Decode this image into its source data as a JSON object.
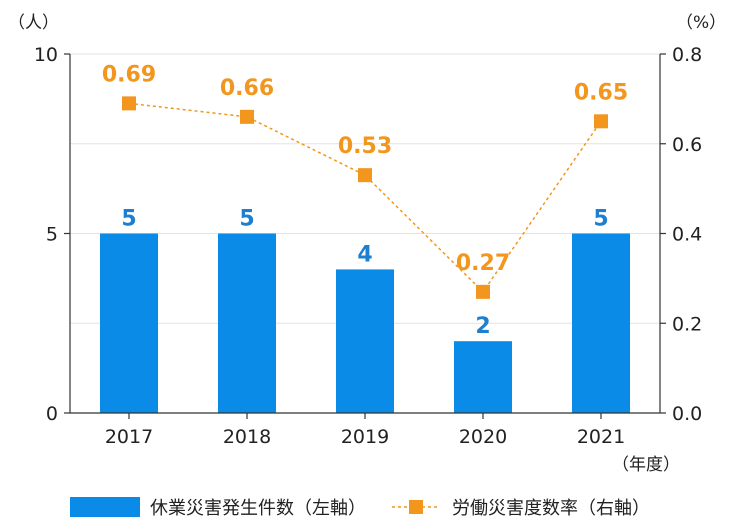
{
  "chart_data": {
    "type": "bar",
    "categories": [
      "2017",
      "2018",
      "2019",
      "2020",
      "2021"
    ],
    "series": [
      {
        "name": "休業災害発生件数（左軸）",
        "type": "bar",
        "axis": "left",
        "values": [
          5,
          5,
          4,
          2,
          5
        ],
        "color": "#0a8be8",
        "label_color": "#1e7fd0"
      },
      {
        "name": "労働災害度数率（右軸）",
        "type": "line",
        "axis": "right",
        "values": [
          0.69,
          0.66,
          0.53,
          0.27,
          0.65
        ],
        "labels": [
          "0.69",
          "0.66",
          "0.53",
          "0.27",
          "0.65"
        ],
        "color": "#f2961e",
        "line_style": "dashed",
        "marker": "square"
      }
    ],
    "left_axis": {
      "unit": "（人）",
      "ylim": [
        0,
        10
      ],
      "ticks": [
        "0",
        "5",
        "10"
      ]
    },
    "right_axis": {
      "unit": "（%）",
      "ylim": [
        0,
        0.8
      ],
      "ticks": [
        "0.0",
        "0.2",
        "0.4",
        "0.6",
        "0.8"
      ]
    },
    "xlabel": "（年度）",
    "grid": true,
    "legend_position": "bottom"
  }
}
